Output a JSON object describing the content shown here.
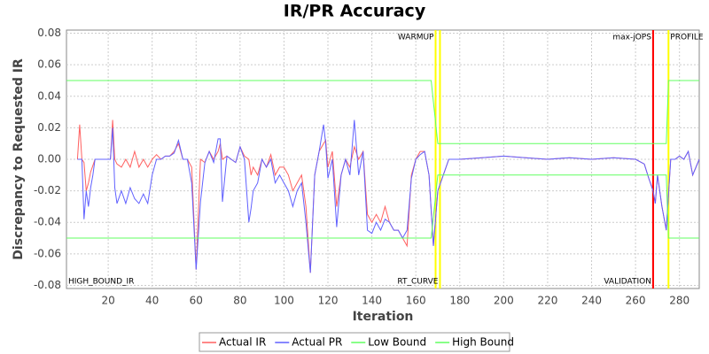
{
  "chart_data": {
    "type": "line",
    "title": "IR/PR Accuracy",
    "x_label": "Iteration",
    "y_label": "Discrepancy to Requested IR",
    "xlim": [
      1,
      289
    ],
    "ylim": [
      -0.082,
      0.082
    ],
    "xticks": [
      20,
      40,
      60,
      80,
      100,
      120,
      140,
      160,
      180,
      200,
      220,
      240,
      260,
      280
    ],
    "yticks": [
      -0.08,
      -0.06,
      -0.04,
      -0.02,
      {
        "value": 0,
        "label": "0.00"
      },
      0.02,
      0.04,
      0.06,
      0.08
    ],
    "grid": true,
    "x": [
      6,
      7,
      8,
      9,
      10,
      11,
      12,
      13,
      14,
      16,
      20,
      21,
      22,
      23,
      24,
      26,
      28,
      30,
      32,
      34,
      36,
      38,
      40,
      42,
      44,
      46,
      48,
      50,
      52,
      54,
      56,
      58,
      60,
      62,
      64,
      66,
      68,
      70,
      71,
      72,
      74,
      76,
      78,
      80,
      82,
      84,
      85,
      86,
      88,
      90,
      92,
      94,
      96,
      98,
      100,
      102,
      104,
      106,
      108,
      110,
      112,
      114,
      116,
      118,
      119,
      120,
      122,
      124,
      126,
      128,
      130,
      132,
      134,
      136,
      138,
      140,
      142,
      144,
      146,
      148,
      150,
      152,
      154,
      156,
      158,
      160,
      162,
      164,
      166,
      168,
      170,
      175,
      180,
      190,
      200,
      210,
      220,
      230,
      240,
      250,
      260,
      264,
      266,
      268,
      269,
      270,
      272,
      274,
      276,
      278,
      280,
      282,
      284,
      286,
      289
    ],
    "series": [
      {
        "name": "Actual IR",
        "color": "#ff6060",
        "values": [
          0,
          0.022,
          0,
          -0.002,
          -0.02,
          -0.015,
          -0.008,
          -0.004,
          0,
          0,
          0,
          0,
          0.025,
          0,
          -0.003,
          -0.005,
          0,
          -0.005,
          0.005,
          -0.005,
          0,
          -0.005,
          0,
          0.003,
          0,
          0.002,
          0.002,
          0.005,
          0.01,
          0,
          0,
          -0.005,
          -0.07,
          0,
          -0.002,
          0.005,
          0,
          0.005,
          0.01,
          0,
          0.002,
          0,
          -0.002,
          0.008,
          0.002,
          0,
          -0.01,
          -0.005,
          -0.01,
          0,
          -0.005,
          0.003,
          -0.01,
          -0.005,
          -0.005,
          -0.01,
          -0.02,
          -0.015,
          -0.01,
          -0.03,
          -0.072,
          -0.01,
          0.005,
          0.01,
          0.012,
          -0.005,
          0.005,
          -0.03,
          -0.01,
          0,
          -0.005,
          0.008,
          0,
          0.005,
          -0.035,
          -0.04,
          -0.035,
          -0.04,
          -0.03,
          -0.04,
          -0.045,
          -0.045,
          -0.05,
          -0.055,
          -0.01,
          0,
          0.005,
          0.005,
          -0.01,
          -0.055,
          -0.02,
          0,
          0,
          0.001,
          0.002,
          0.001,
          0,
          0.001,
          0,
          0.001,
          0,
          -0.003,
          -0.012,
          -0.02,
          -0.028,
          -0.01,
          -0.03,
          -0.045,
          0,
          0,
          0.002,
          0,
          0.005,
          -0.01,
          0
        ]
      },
      {
        "name": "Actual PR",
        "color": "#6060ff",
        "values": [
          0,
          0,
          0,
          -0.038,
          -0.02,
          -0.03,
          -0.018,
          -0.01,
          0,
          0,
          0,
          0,
          0.02,
          -0.018,
          -0.028,
          -0.02,
          -0.028,
          -0.018,
          -0.025,
          -0.028,
          -0.022,
          -0.028,
          -0.01,
          0,
          0,
          0.002,
          0.002,
          0.004,
          0.012,
          0,
          0,
          -0.015,
          -0.07,
          -0.027,
          -0.002,
          0.005,
          -0.002,
          0.013,
          0.013,
          -0.027,
          0.002,
          0,
          -0.002,
          0.008,
          0,
          -0.04,
          -0.031,
          -0.02,
          -0.015,
          0,
          -0.005,
          0,
          -0.015,
          -0.01,
          -0.015,
          -0.02,
          -0.03,
          -0.02,
          -0.015,
          -0.04,
          -0.072,
          -0.01,
          0.005,
          0.022,
          0.01,
          -0.012,
          0,
          -0.043,
          -0.01,
          0,
          -0.01,
          0.025,
          -0.01,
          0.005,
          -0.045,
          -0.047,
          -0.04,
          -0.045,
          -0.038,
          -0.04,
          -0.045,
          -0.045,
          -0.05,
          -0.045,
          -0.012,
          0,
          0.003,
          0.005,
          -0.01,
          -0.055,
          -0.02,
          0,
          0,
          0.001,
          0.002,
          0.001,
          0,
          0.001,
          0,
          0.001,
          0,
          -0.003,
          -0.012,
          -0.02,
          -0.028,
          -0.01,
          -0.03,
          -0.045,
          0,
          0,
          0.002,
          0,
          0.005,
          -0.01,
          0
        ]
      },
      {
        "name": "Low Bound",
        "color": "#60ff60",
        "x": [
          1,
          167,
          170,
          274,
          275,
          289
        ],
        "values": [
          -0.05,
          -0.05,
          -0.01,
          -0.01,
          -0.05,
          -0.05
        ]
      },
      {
        "name": "High Bound",
        "color": "#60ff60",
        "x": [
          1,
          167,
          170,
          274,
          275,
          289
        ],
        "values": [
          0.05,
          0.05,
          0.01,
          0.01,
          0.05,
          0.05
        ]
      }
    ],
    "markers": [
      {
        "x": 169,
        "label": "WARMUP",
        "color": "#ffff00",
        "position": "top",
        "anchor": "end"
      },
      {
        "x": 171,
        "label": "RT_CURVE",
        "color": "#ffff00",
        "position": "bottom",
        "anchor": "end"
      },
      {
        "x": 268,
        "label": "max-jOPS",
        "color": "#ff0000",
        "position": "top",
        "anchor": "end"
      },
      {
        "x": 268,
        "label": "VALIDATION",
        "color": "#ff0000",
        "position": "bottom",
        "anchor": "end"
      },
      {
        "x": 275,
        "label": "PROFILE",
        "color": "#ffff00",
        "position": "top",
        "anchor": "start"
      },
      {
        "x": 1,
        "label": "HIGH_BOUND_IR",
        "position": "bottom",
        "anchor": "start"
      }
    ]
  }
}
